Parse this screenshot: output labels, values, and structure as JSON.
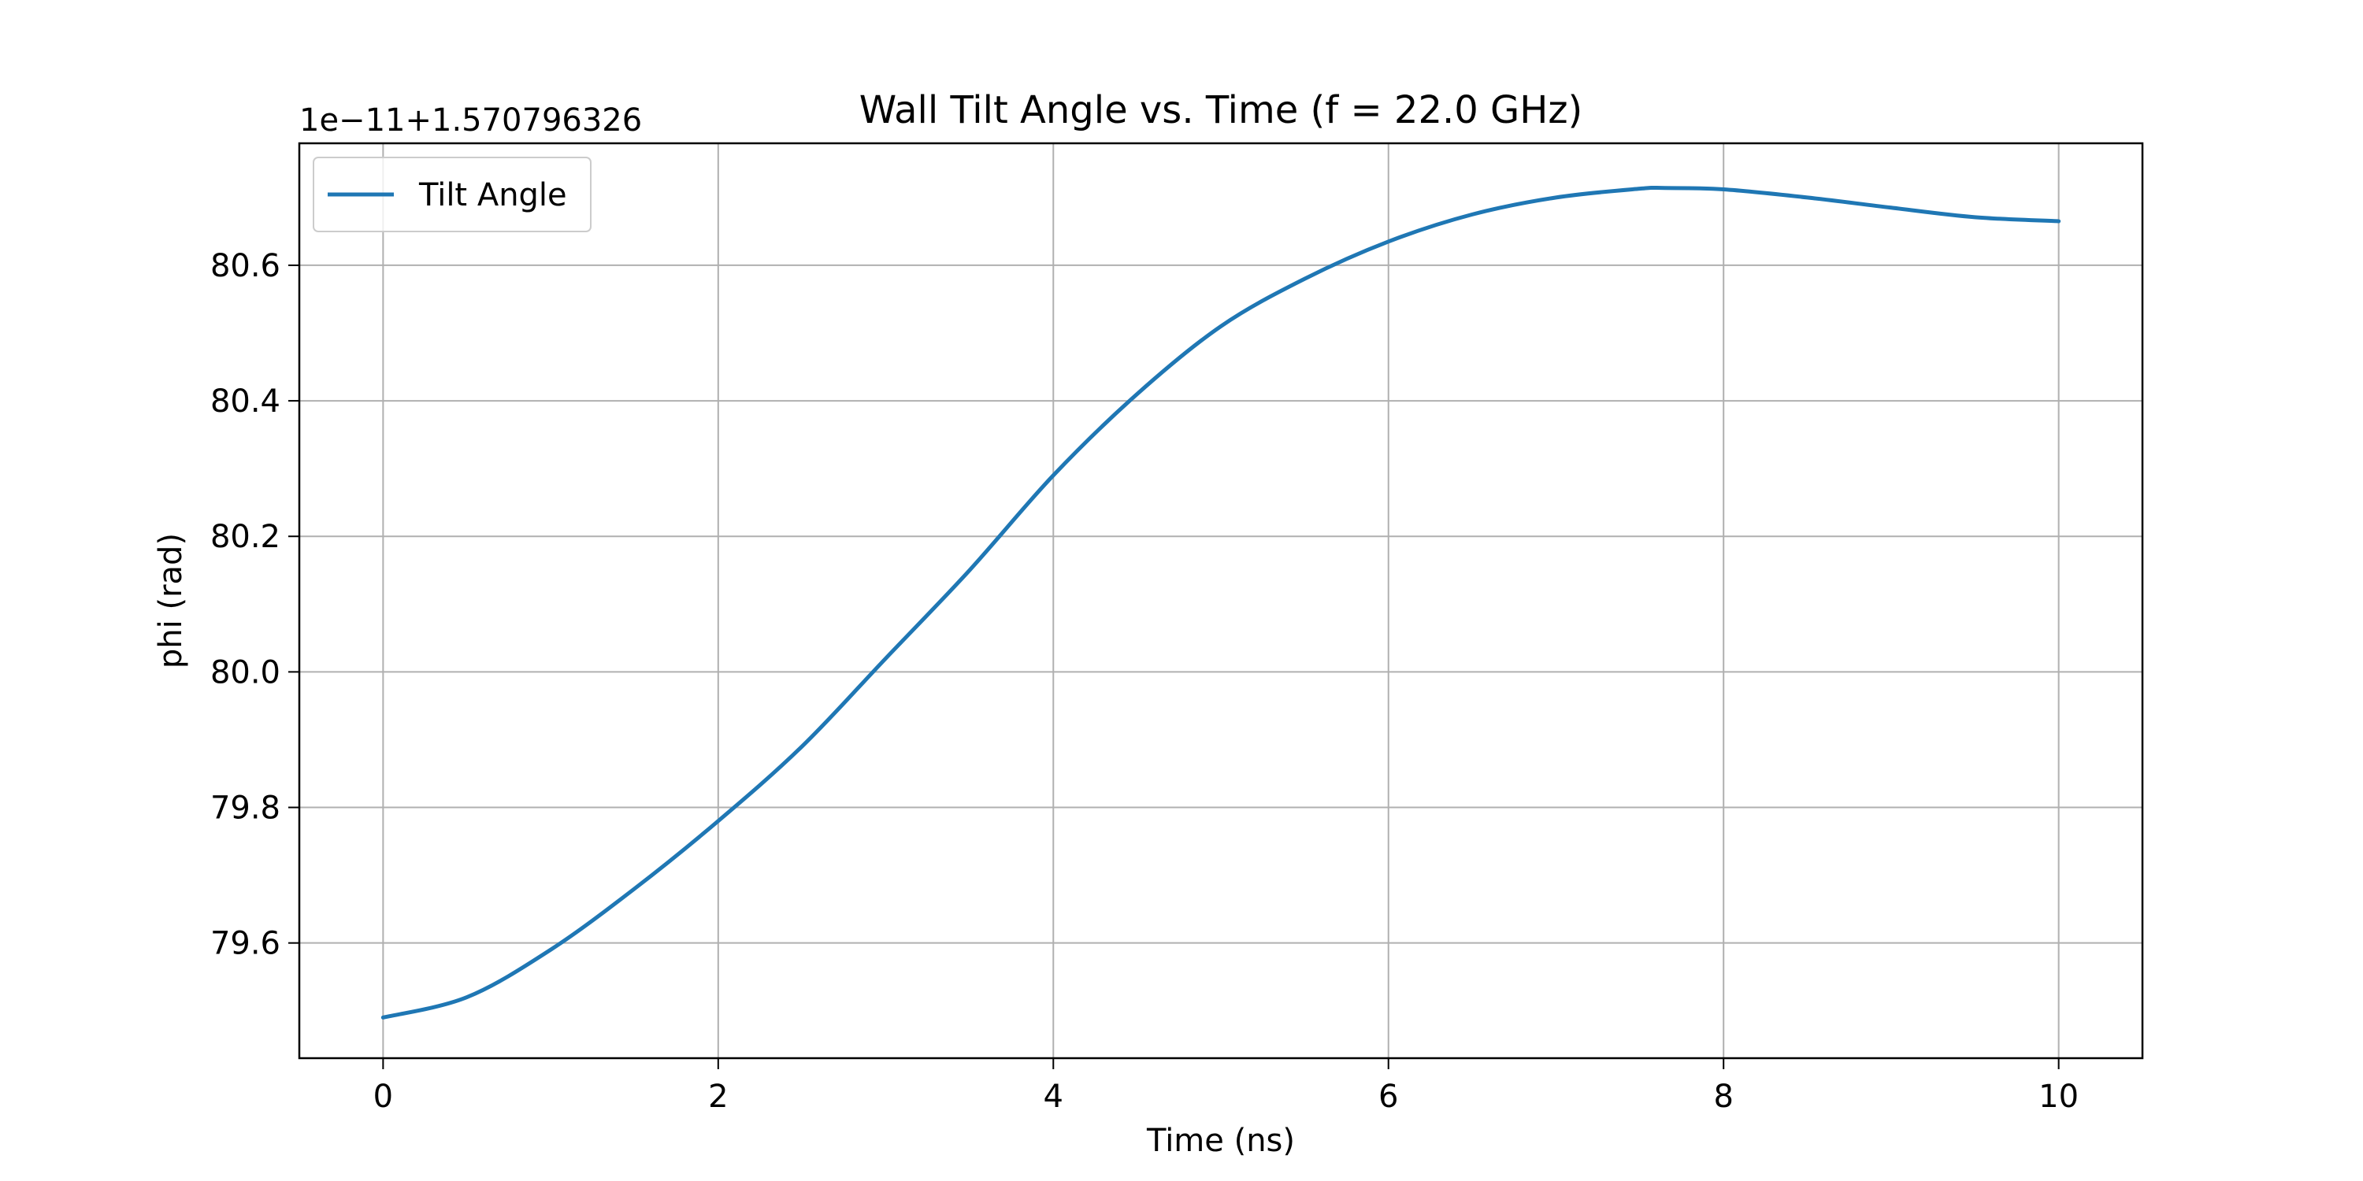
{
  "chart_data": {
    "type": "line",
    "title": "Wall Tilt Angle vs. Time (f = 22.0 GHz)",
    "xlabel": "Time (ns)",
    "ylabel": "phi (rad)",
    "y_offset_text": "1e−11+1.570796326",
    "xlim": [
      -0.5,
      10.5
    ],
    "ylim": [
      79.43,
      80.78
    ],
    "xticks": [
      0,
      2,
      4,
      6,
      8,
      10
    ],
    "xtick_labels": [
      "0",
      "2",
      "4",
      "6",
      "8",
      "10"
    ],
    "yticks": [
      79.6,
      79.8,
      80.0,
      80.2,
      80.4,
      80.6
    ],
    "ytick_labels": [
      "79.6",
      "79.8",
      "80.0",
      "80.2",
      "80.4",
      "80.6"
    ],
    "grid": true,
    "legend": {
      "position": "upper-left",
      "entries": [
        "Tilt Angle"
      ]
    },
    "series": [
      {
        "name": "Tilt Angle",
        "color": "#1f77b4",
        "x": [
          0,
          0.5,
          1,
          1.5,
          2,
          2.5,
          3,
          3.5,
          4,
          4.5,
          5,
          5.5,
          6,
          6.5,
          7,
          7.5,
          7.65,
          8,
          8.5,
          9,
          9.5,
          10
        ],
        "y": [
          79.49,
          79.52,
          79.59,
          79.68,
          79.78,
          79.89,
          80.02,
          80.15,
          80.29,
          80.41,
          80.51,
          80.58,
          80.635,
          80.675,
          80.7,
          80.713,
          80.714,
          80.712,
          80.7,
          80.685,
          80.671,
          80.665
        ]
      }
    ]
  }
}
